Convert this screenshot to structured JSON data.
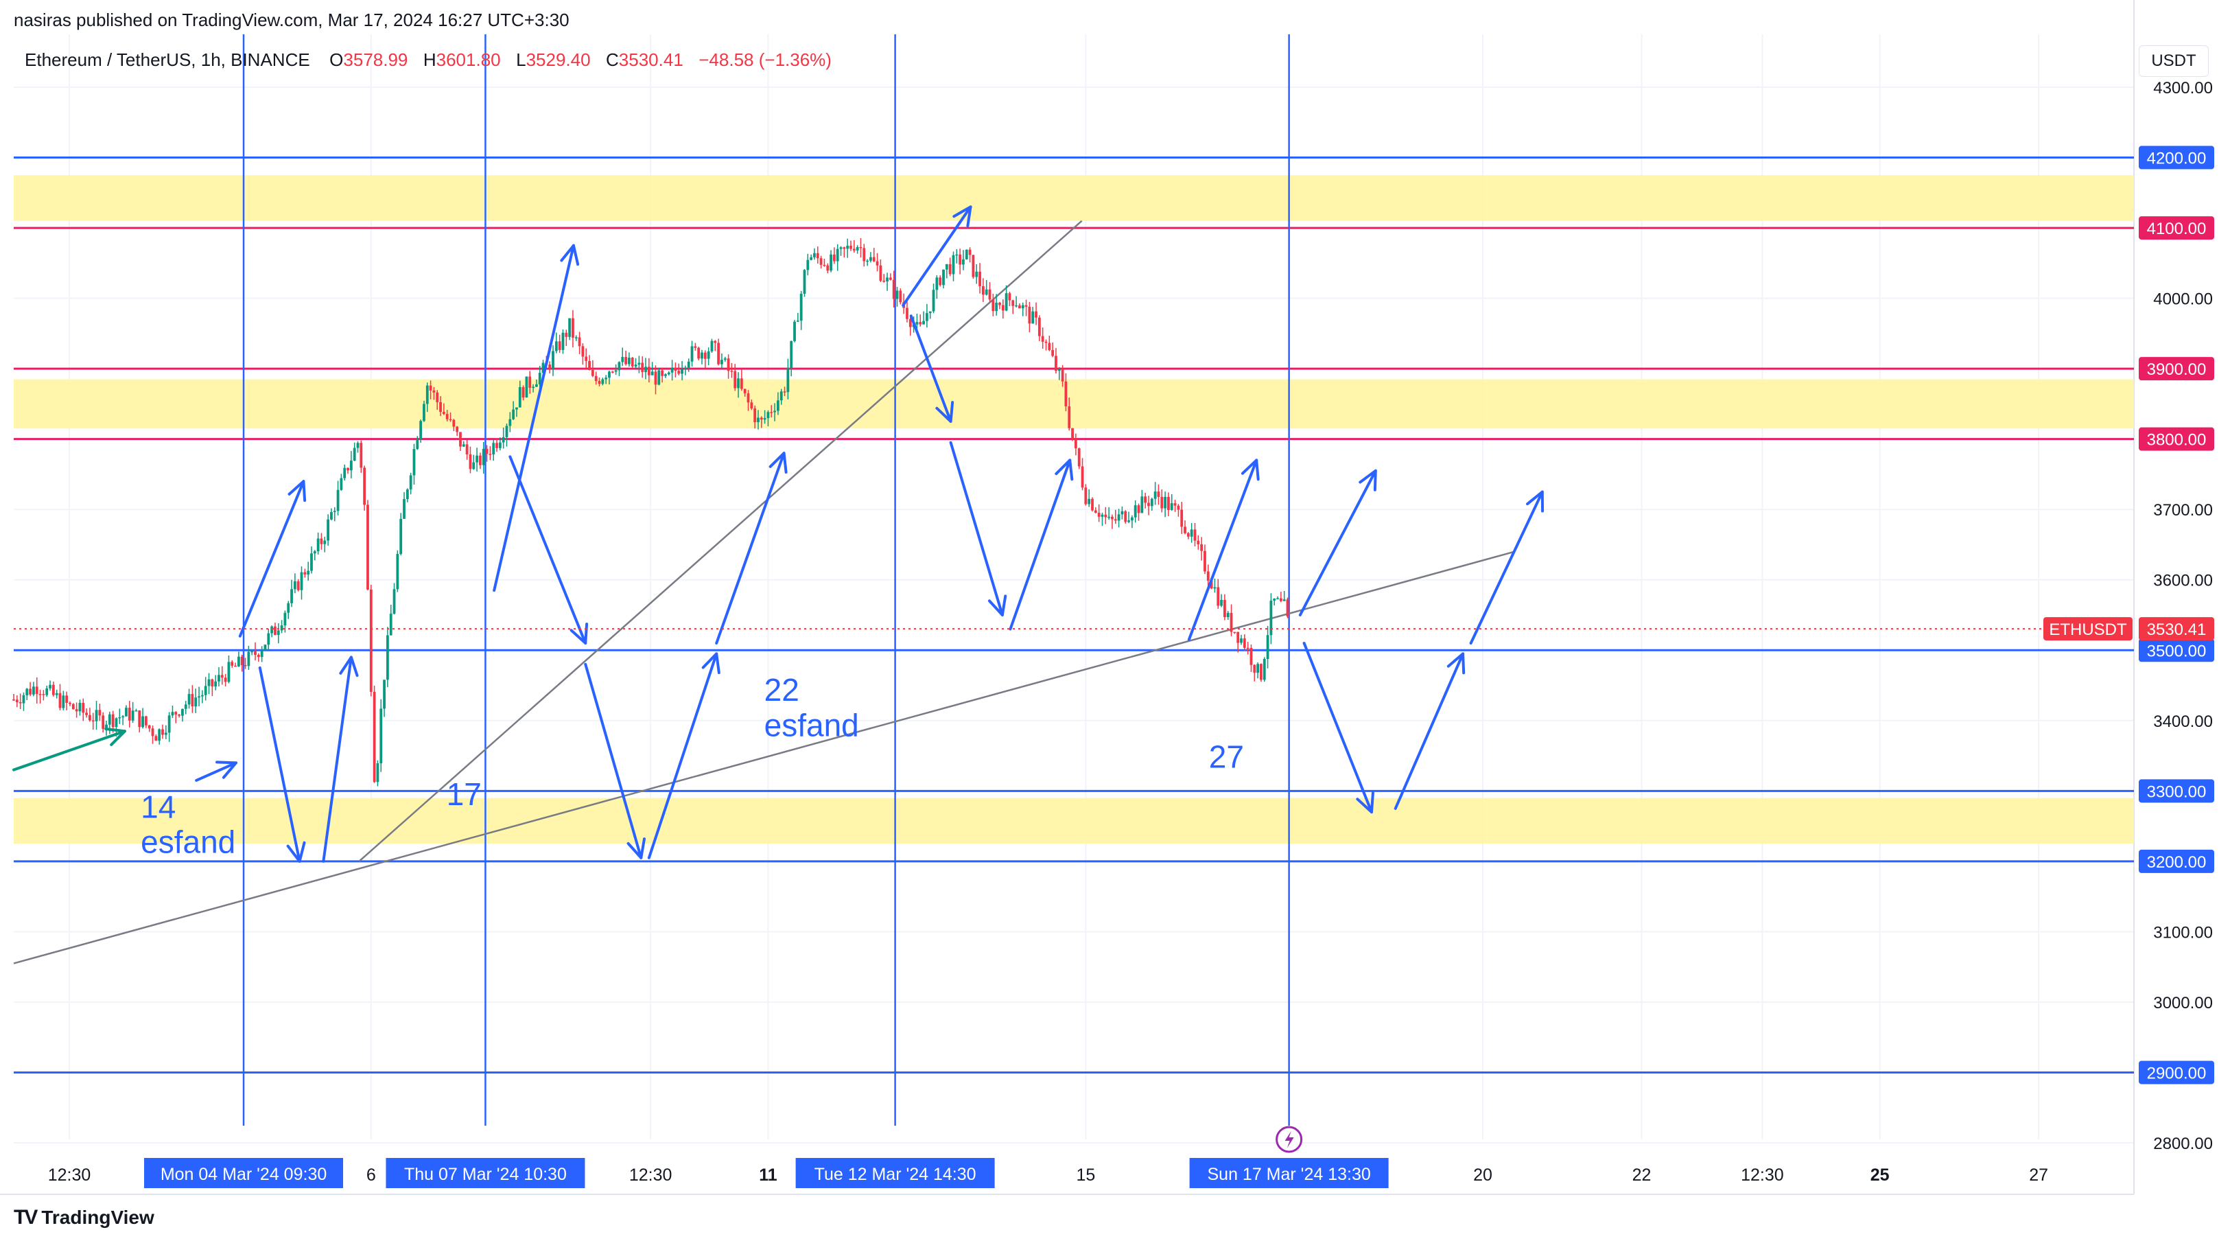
{
  "header": {
    "published": "nasiras published on TradingView.com, Mar 17, 2024 16:27 UTC+3:30"
  },
  "legend": {
    "symbol": "Ethereum / TetherUS, 1h, BINANCE",
    "o_label": "O",
    "o_value": "3578.99",
    "h_label": "H",
    "h_value": "3601.80",
    "l_label": "L",
    "l_value": "3529.40",
    "c_label": "C",
    "c_value": "3530.41",
    "change": "−48.58 (−1.36%)"
  },
  "currency": "USDT",
  "footer": {
    "brand": "TradingView"
  },
  "colors": {
    "up": "#089981",
    "down": "#f23645",
    "blue": "#2962ff",
    "zone": "#fff59d",
    "pink": "#e91e63",
    "grid": "#f0f3fa",
    "trend": "#787b86"
  },
  "chart_data": {
    "type": "candlestick",
    "symbol": "ETHUSDT",
    "interval": "1h",
    "y_axis_ticks": [
      "4300.00",
      "4200.00",
      "4100.00",
      "4000.00",
      "3900.00",
      "3800.00",
      "3700.00",
      "3600.00",
      "3500.00",
      "3400.00",
      "3300.00",
      "3200.00",
      "3100.00",
      "3000.00",
      "2900.00",
      "2800.00"
    ],
    "ylim": [
      2780,
      4330
    ],
    "x_axis_ticks": [
      {
        "label": "12:30",
        "bold": false,
        "day": 2.2
      },
      {
        "label": "6",
        "bold": false,
        "day": 6
      },
      {
        "label": "12:30",
        "bold": false,
        "day": 9.52
      },
      {
        "label": "11",
        "bold": true,
        "day": 11
      },
      {
        "label": "15",
        "bold": false,
        "day": 15
      },
      {
        "label": "20",
        "bold": false,
        "day": 20
      },
      {
        "label": "22",
        "bold": false,
        "day": 22
      },
      {
        "label": "12:30",
        "bold": false,
        "day": 23.52
      },
      {
        "label": "25",
        "bold": true,
        "day": 25
      },
      {
        "label": "27",
        "bold": false,
        "day": 27
      }
    ],
    "xlim_days": [
      1.5,
      28.2
    ],
    "last_price": {
      "label": "ETHUSDT",
      "value": "3530.41",
      "price": 3530.41
    },
    "horizontal_lines": [
      {
        "price": 4200,
        "label": "4200.00",
        "color": "blue"
      },
      {
        "price": 4100,
        "label": "4100.00",
        "color": "pink"
      },
      {
        "price": 3900,
        "label": "3900.00",
        "color": "pink"
      },
      {
        "price": 3800,
        "label": "3800.00",
        "color": "pink"
      },
      {
        "price": 3500,
        "label": "3500.00",
        "color": "blue"
      },
      {
        "price": 3300,
        "label": "3300.00",
        "color": "blue"
      },
      {
        "price": 3200,
        "label": "3200.00",
        "color": "blue"
      },
      {
        "price": 2900,
        "label": "2900.00",
        "color": "blue"
      }
    ],
    "zones": [
      {
        "top": 4175,
        "bottom": 4110
      },
      {
        "top": 3885,
        "bottom": 3815
      },
      {
        "top": 3290,
        "bottom": 3225
      }
    ],
    "vertical_lines": [
      {
        "day": 4.395,
        "label": "Mon 04 Mar '24   09:30"
      },
      {
        "day": 7.44,
        "label": "Thu 07 Mar '24   10:30"
      },
      {
        "day": 12.6,
        "label": "Tue 12 Mar '24   14:30"
      },
      {
        "day": 17.56,
        "label": "Sun 17 Mar '24   13:30"
      }
    ],
    "trend_lines": [
      {
        "d1": 1.5,
        "p1": 3055,
        "d2": 20.4,
        "p2": 3640
      },
      {
        "d1": 5.85,
        "p1": 3200,
        "d2": 14.95,
        "p2": 4110
      }
    ],
    "annotations": [
      {
        "text": "14",
        "day": 3.1,
        "price": 3262
      },
      {
        "text": "esfand",
        "day": 3.1,
        "price": 3212
      },
      {
        "text": "17",
        "day": 6.95,
        "price": 3280
      },
      {
        "text": "22",
        "day": 10.95,
        "price": 3428
      },
      {
        "text": "esfand",
        "day": 10.95,
        "price": 3378
      },
      {
        "text": "27",
        "day": 16.55,
        "price": 3333
      }
    ],
    "arrows": [
      [
        1.5,
        3330,
        2.9,
        3385
      ],
      [
        3.8,
        3315,
        4.3,
        3340
      ],
      [
        4.35,
        3520,
        5.15,
        3740
      ],
      [
        4.6,
        3475,
        5.1,
        3200
      ],
      [
        5.4,
        3200,
        5.75,
        3490
      ],
      [
        7.55,
        3585,
        8.55,
        4075
      ],
      [
        7.75,
        3775,
        8.7,
        3510
      ],
      [
        8.7,
        3480,
        9.4,
        3205
      ],
      [
        9.5,
        3205,
        10.35,
        3495
      ],
      [
        10.35,
        3510,
        11.2,
        3780
      ],
      [
        12.7,
        3990,
        13.55,
        4130
      ],
      [
        12.8,
        3975,
        13.3,
        3825
      ],
      [
        13.3,
        3795,
        13.95,
        3550
      ],
      [
        14.05,
        3530,
        14.8,
        3770
      ],
      [
        16.3,
        3515,
        17.15,
        3770
      ],
      [
        17.7,
        3550,
        18.65,
        3755
      ],
      [
        17.75,
        3510,
        18.6,
        3270
      ],
      [
        18.9,
        3275,
        19.75,
        3495
      ],
      [
        19.85,
        3510,
        20.75,
        3725
      ]
    ],
    "candles_anchor": [
      [
        1.5,
        3430
      ],
      [
        1.8,
        3450
      ],
      [
        2.2,
        3420
      ],
      [
        2.6,
        3400
      ],
      [
        3.0,
        3410
      ],
      [
        3.3,
        3380
      ],
      [
        3.6,
        3420
      ],
      [
        3.9,
        3440
      ],
      [
        4.2,
        3470
      ],
      [
        4.5,
        3490
      ],
      [
        4.8,
        3530
      ],
      [
        5.1,
        3600
      ],
      [
        5.4,
        3660
      ],
      [
        5.7,
        3760
      ],
      [
        5.85,
        3800
      ],
      [
        5.92,
        3700
      ],
      [
        6.05,
        3300
      ],
      [
        6.15,
        3450
      ],
      [
        6.4,
        3700
      ],
      [
        6.7,
        3880
      ],
      [
        7.0,
        3820
      ],
      [
        7.3,
        3760
      ],
      [
        7.6,
        3800
      ],
      [
        7.9,
        3870
      ],
      [
        8.2,
        3900
      ],
      [
        8.5,
        3960
      ],
      [
        8.8,
        3880
      ],
      [
        9.1,
        3910
      ],
      [
        9.4,
        3900
      ],
      [
        9.7,
        3880
      ],
      [
        10.0,
        3920
      ],
      [
        10.3,
        3930
      ],
      [
        10.6,
        3880
      ],
      [
        10.9,
        3820
      ],
      [
        11.2,
        3870
      ],
      [
        11.5,
        4060
      ],
      [
        11.8,
        4050
      ],
      [
        12.1,
        4080
      ],
      [
        12.4,
        4040
      ],
      [
        12.7,
        3990
      ],
      [
        12.9,
        3950
      ],
      [
        13.2,
        4040
      ],
      [
        13.5,
        4060
      ],
      [
        13.8,
        3990
      ],
      [
        14.1,
        4000
      ],
      [
        14.4,
        3960
      ],
      [
        14.7,
        3880
      ],
      [
        14.85,
        3790
      ],
      [
        15.0,
        3720
      ],
      [
        15.3,
        3680
      ],
      [
        15.6,
        3700
      ],
      [
        15.9,
        3720
      ],
      [
        16.2,
        3690
      ],
      [
        16.5,
        3620
      ],
      [
        16.8,
        3540
      ],
      [
        17.0,
        3510
      ],
      [
        17.2,
        3460
      ],
      [
        17.35,
        3570
      ],
      [
        17.5,
        3560
      ],
      [
        17.56,
        3530
      ]
    ],
    "event_marker_day": 17.56
  }
}
